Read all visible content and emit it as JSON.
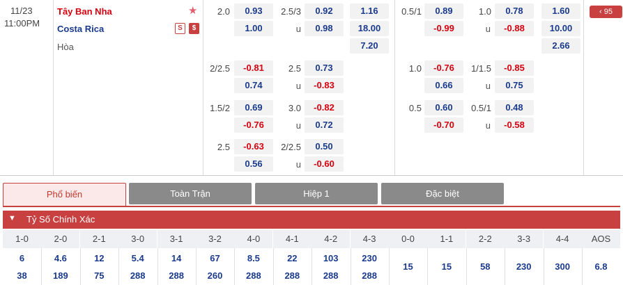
{
  "match": {
    "date": "11/23",
    "time": "11:00PM",
    "home": "Tây Ban Nha",
    "away": "Costa Rica",
    "draw": "Hòa",
    "star_icon": "star-icon",
    "badge_s": "S",
    "badge_dollar": "$",
    "more_label": "‹ 95",
    "accent": "#c94040"
  },
  "ft_hdp": [
    {
      "line": "2.0",
      "home": "0.93",
      "away": "1.00"
    },
    {
      "line": "2/2.5",
      "home": "-0.81",
      "away": "0.74"
    },
    {
      "line": "1.5/2",
      "home": "0.69",
      "away": "-0.76"
    },
    {
      "line": "2.5",
      "home": "-0.63",
      "away": "0.56"
    }
  ],
  "ft_ou": [
    {
      "line": "2.5/3",
      "u": "u",
      "over": "0.92",
      "under": "0.98"
    },
    {
      "line": "2.5",
      "u": "u",
      "over": "0.73",
      "under": "-0.83"
    },
    {
      "line": "3.0",
      "u": "u",
      "over": "-0.82",
      "under": "0.72"
    },
    {
      "line": "2/2.5",
      "u": "u",
      "over": "0.50",
      "under": "-0.60"
    }
  ],
  "ft_1x2": {
    "home": "1.16",
    "away": "18.00",
    "draw": "7.20"
  },
  "h1_hdp": [
    {
      "line": "0.5/1",
      "home": "0.89",
      "away": "-0.99"
    },
    {
      "line": "1.0",
      "home": "-0.76",
      "away": "0.66"
    },
    {
      "line": "0.5",
      "home": "0.60",
      "away": "-0.70"
    }
  ],
  "h1_ou": [
    {
      "line": "1.0",
      "u": "u",
      "over": "0.78",
      "under": "-0.88"
    },
    {
      "line": "1/1.5",
      "u": "u",
      "over": "-0.85",
      "under": "0.75"
    },
    {
      "line": "0.5/1",
      "u": "u",
      "over": "0.48",
      "under": "-0.58"
    }
  ],
  "h1_1x2": {
    "home": "1.60",
    "away": "10.00",
    "draw": "2.66"
  },
  "tabs": [
    "Phổ biến",
    "Toàn Trận",
    "Hiệp 1",
    "Đặc biệt"
  ],
  "section": {
    "title": "Tỷ Số Chính Xác",
    "chevron_icon": "chevron-down-icon"
  },
  "scores": [
    {
      "label": "1-0",
      "top": "6",
      "bot": "38"
    },
    {
      "label": "2-0",
      "top": "4.6",
      "bot": "189"
    },
    {
      "label": "2-1",
      "top": "12",
      "bot": "75"
    },
    {
      "label": "3-0",
      "top": "5.4",
      "bot": "288"
    },
    {
      "label": "3-1",
      "top": "14",
      "bot": "288"
    },
    {
      "label": "3-2",
      "top": "67",
      "bot": "260"
    },
    {
      "label": "4-0",
      "top": "8.5",
      "bot": "288"
    },
    {
      "label": "4-1",
      "top": "22",
      "bot": "288"
    },
    {
      "label": "4-2",
      "top": "103",
      "bot": "288"
    },
    {
      "label": "4-3",
      "top": "230",
      "bot": "288"
    },
    {
      "label": "0-0",
      "mid": "15"
    },
    {
      "label": "1-1",
      "mid": "15"
    },
    {
      "label": "2-2",
      "mid": "58"
    },
    {
      "label": "3-3",
      "mid": "230"
    },
    {
      "label": "4-4",
      "mid": "300"
    },
    {
      "label": "AOS",
      "mid": "6.8"
    }
  ]
}
